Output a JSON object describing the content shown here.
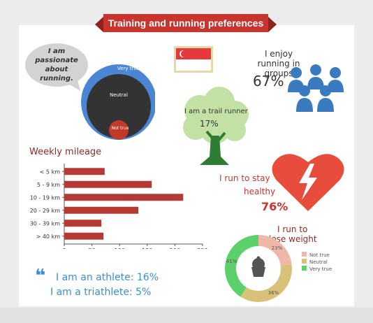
{
  "title": "Training and running preferences",
  "passion": {
    "quote": "I am passionate about running.",
    "levels": [
      "Very true",
      "Neutral",
      "Not true"
    ],
    "colors": {
      "very_true": "#4a86d4",
      "neutral": "#333333",
      "not_true": "#c0392b"
    }
  },
  "flag_icon": "singapore-flag-icon",
  "groups": {
    "label": "I enjoy running in groups",
    "percent": "67%",
    "icon": "people-group-icon",
    "color": "#3a7abf"
  },
  "trail": {
    "label": "I am a trail runner",
    "percent": "17%",
    "icon": "tree-icon"
  },
  "healthy": {
    "label_line1": "I run to stay",
    "label_line2": "healthy",
    "percent": "76%",
    "icon": "heart-icon",
    "color": "#e74c3c"
  },
  "weight": {
    "label_line1": "I run to",
    "label_line2": "lose weight",
    "icon": "cupcake-icon"
  },
  "athlete": {
    "line1": "I am an athlete:",
    "line1_pct": "16%",
    "line2": "I am a triathlete:",
    "line2_pct": "5%",
    "quote_icon": "quote-icon"
  },
  "chart_data": [
    {
      "type": "bar",
      "orientation": "horizontal",
      "title": "Weekly mileage",
      "categories": [
        "< 5 km",
        "5 - 9 km",
        "10 - 19 km",
        "20 - 29 km",
        "30 - 39 km",
        "> 40 km"
      ],
      "values": [
        73,
        158,
        215,
        134,
        67,
        71
      ],
      "xlim": [
        0,
        250
      ],
      "xticks": [
        0,
        50,
        100,
        150,
        200,
        250
      ],
      "color": "#b53a35",
      "grid": false
    },
    {
      "type": "pie",
      "style": "donut",
      "categories": [
        "Not true",
        "Neutral",
        "Very true"
      ],
      "values": [
        23,
        36,
        41
      ],
      "labels": [
        "23%",
        "36%",
        "41%"
      ],
      "colors": [
        "#efb7a8",
        "#d8c27a",
        "#5cd16b"
      ],
      "legend": "right"
    }
  ]
}
